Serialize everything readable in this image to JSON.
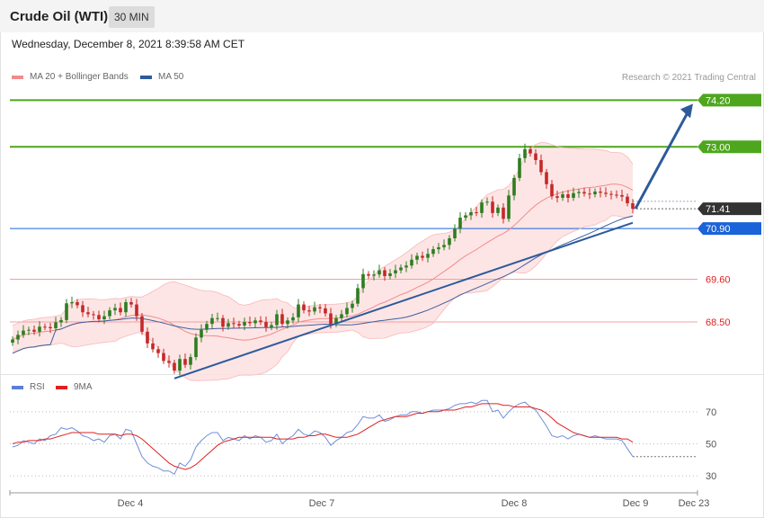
{
  "header": {
    "title": "Crude Oil (WTI)",
    "interval": "30 MIN",
    "timestamp": "Wednesday, December 8, 2021 8:39:58 AM CET"
  },
  "legend": {
    "items": [
      {
        "label": "MA 20 + Bollinger Bands",
        "color": "#f28b8b"
      },
      {
        "label": "MA 50",
        "color": "#2d5a9b"
      }
    ],
    "credit": "Research © 2021 Trading Central"
  },
  "rsi_legend": {
    "items": [
      {
        "label": "RSI",
        "color": "#5b7fd4"
      },
      {
        "label": "9MA",
        "color": "#e02020"
      }
    ]
  },
  "chart_data": [
    {
      "type": "candlestick",
      "y_range": [
        67.3,
        74.6
      ],
      "x_labels": [
        "Dec 4",
        "Dec 7",
        "Dec 8",
        "Dec 9",
        "Dec 23"
      ],
      "levels": [
        {
          "value": 74.2,
          "label": "74.20",
          "kind": "resistance",
          "color": "#4ea61e"
        },
        {
          "value": 73.0,
          "label": "73.00",
          "kind": "resistance",
          "color": "#4ea61e"
        },
        {
          "value": 71.41,
          "label": "71.41",
          "kind": "last-price",
          "color": "#333333"
        },
        {
          "value": 70.9,
          "label": "70.90",
          "kind": "pivot",
          "color": "#1a63d8"
        },
        {
          "value": 69.6,
          "label": "69.60",
          "kind": "support",
          "color": "#e02020"
        },
        {
          "value": 68.5,
          "label": "68.50",
          "kind": "support",
          "color": "#e02020"
        }
      ],
      "closes": [
        68.05,
        68.17,
        68.28,
        68.3,
        68.25,
        68.38,
        68.37,
        68.34,
        68.49,
        68.55,
        68.98,
        69.01,
        68.93,
        68.75,
        68.7,
        68.68,
        68.57,
        68.65,
        68.8,
        68.86,
        68.75,
        69.01,
        68.95,
        68.65,
        68.25,
        67.95,
        67.8,
        67.7,
        67.5,
        67.45,
        67.25,
        67.55,
        67.4,
        67.6,
        68.1,
        68.3,
        68.45,
        68.6,
        68.6,
        68.38,
        68.47,
        68.45,
        68.41,
        68.5,
        68.47,
        68.54,
        68.5,
        68.37,
        68.42,
        68.7,
        68.45,
        68.54,
        68.62,
        68.95,
        68.8,
        68.77,
        68.88,
        68.85,
        68.72,
        68.45,
        68.6,
        68.7,
        68.86,
        68.97,
        69.37,
        69.73,
        69.69,
        69.72,
        69.83,
        69.68,
        69.75,
        69.83,
        69.9,
        69.95,
        70.1,
        70.2,
        70.15,
        70.25,
        70.37,
        70.42,
        70.48,
        70.65,
        70.9,
        71.18,
        71.24,
        71.32,
        71.3,
        71.57,
        71.59,
        71.3,
        71.44,
        71.15,
        71.75,
        72.2,
        72.71,
        72.94,
        72.83,
        72.66,
        72.35,
        72.04,
        71.73,
        71.69,
        71.78,
        71.69,
        71.81,
        71.84,
        71.8,
        71.78,
        71.85,
        71.82,
        71.79,
        71.77,
        71.76,
        71.72,
        71.55,
        71.41
      ],
      "ma20_bollinger": {
        "note": "MA 20 line with shaded upper/lower bands"
      },
      "ma50": {
        "note": "MA 50 line"
      },
      "trendline": {
        "from_label": "Dec 4",
        "direction": "up"
      },
      "arrow_target": 74.2
    },
    {
      "type": "line",
      "name": "RSI",
      "y_range": [
        25,
        80
      ],
      "y_ticks": [
        "70",
        "50",
        "30"
      ],
      "series": [
        {
          "name": "RSI",
          "values": [
            48,
            49,
            52,
            51,
            50,
            53,
            52,
            55,
            56,
            60,
            59,
            60,
            58,
            55,
            54,
            52,
            53,
            51,
            55,
            56,
            53,
            59,
            58,
            50,
            42,
            38,
            36,
            35,
            33,
            33,
            31,
            38,
            36,
            40,
            48,
            52,
            55,
            57,
            57,
            52,
            54,
            53,
            52,
            55,
            53,
            55,
            54,
            51,
            52,
            56,
            50,
            53,
            55,
            59,
            56,
            55,
            58,
            57,
            54,
            49,
            52,
            54,
            57,
            58,
            62,
            67,
            66,
            66,
            68,
            64,
            65,
            67,
            68,
            68,
            70,
            70,
            69,
            70,
            71,
            71,
            71,
            72,
            74,
            75,
            75,
            76,
            75,
            77,
            77,
            70,
            71,
            66,
            70,
            73,
            75,
            76,
            73,
            71,
            66,
            61,
            55,
            54,
            55,
            53,
            55,
            56,
            55,
            54,
            55,
            54,
            53,
            53,
            53,
            52,
            47,
            42
          ]
        },
        {
          "name": "9MA",
          "values": [
            50,
            51,
            51,
            52,
            52,
            52,
            53,
            53,
            54,
            55,
            56,
            57,
            57,
            57,
            57,
            57,
            56,
            56,
            56,
            56,
            55,
            56,
            56,
            55,
            53,
            50,
            47,
            44,
            41,
            38,
            36,
            35,
            34,
            35,
            37,
            40,
            43,
            46,
            49,
            51,
            52,
            53,
            54,
            54,
            54,
            54,
            54,
            54,
            54,
            53,
            53,
            53,
            53,
            54,
            54,
            55,
            55,
            56,
            56,
            55,
            54,
            54,
            54,
            55,
            56,
            58,
            60,
            62,
            64,
            65,
            66,
            67,
            67,
            67,
            68,
            69,
            69,
            70,
            70,
            70,
            71,
            71,
            71,
            72,
            73,
            73,
            74,
            75,
            75,
            75,
            75,
            74,
            74,
            73,
            73,
            73,
            73,
            72,
            71,
            69,
            66,
            63,
            61,
            59,
            57,
            56,
            55,
            54,
            54,
            54,
            54,
            54,
            54,
            53,
            53,
            51
          ]
        }
      ]
    }
  ]
}
